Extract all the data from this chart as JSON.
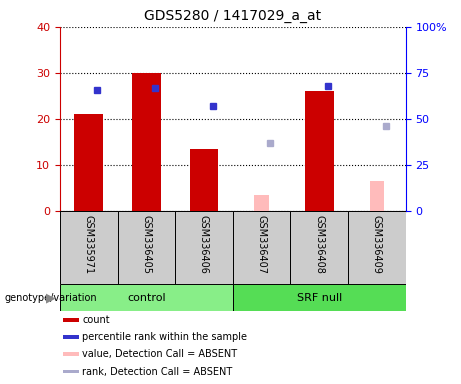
{
  "title": "GDS5280 / 1417029_a_at",
  "samples": [
    "GSM335971",
    "GSM336405",
    "GSM336406",
    "GSM336407",
    "GSM336408",
    "GSM336409"
  ],
  "count_values": [
    21,
    30,
    13.5,
    null,
    26,
    null
  ],
  "percentile_values": [
    66,
    67,
    57,
    null,
    68,
    null
  ],
  "absent_value_values": [
    null,
    null,
    null,
    3.5,
    null,
    6.5
  ],
  "absent_rank_values": [
    null,
    null,
    null,
    37,
    null,
    46
  ],
  "ylim_left": [
    0,
    40
  ],
  "ylim_right": [
    0,
    100
  ],
  "yticks_left": [
    0,
    10,
    20,
    30,
    40
  ],
  "ytick_labels_right": [
    "0",
    "25",
    "50",
    "75",
    "100%"
  ],
  "bar_color": "#cc0000",
  "blue_color": "#3333cc",
  "pink_color": "#ffbbbb",
  "light_blue_color": "#aaaacc",
  "control_color": "#88ee88",
  "srf_color": "#55dd55",
  "sample_bg": "#cccccc",
  "legend_items": [
    {
      "label": "count",
      "color": "#cc0000"
    },
    {
      "label": "percentile rank within the sample",
      "color": "#3333cc"
    },
    {
      "label": "value, Detection Call = ABSENT",
      "color": "#ffbbbb"
    },
    {
      "label": "rank, Detection Call = ABSENT",
      "color": "#aaaacc"
    }
  ],
  "group_control": [
    0,
    1,
    2
  ],
  "group_srf": [
    3,
    4,
    5
  ]
}
